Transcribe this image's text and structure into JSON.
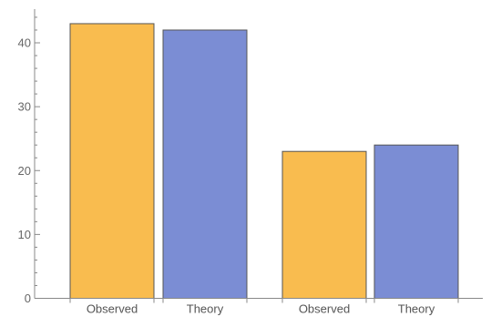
{
  "chart_data": {
    "type": "bar",
    "title": "",
    "xlabel": "",
    "ylabel": "",
    "ylim": [
      0,
      45
    ],
    "yticks": [
      0,
      10,
      20,
      30,
      40
    ],
    "yminor_step": 2,
    "grid": false,
    "groups": [
      {
        "bars": [
          {
            "category": "Observed",
            "value": 43,
            "color": "#f9bc4f"
          },
          {
            "category": "Theory",
            "value": 42,
            "color": "#7b8dd4"
          }
        ]
      },
      {
        "bars": [
          {
            "category": "Observed",
            "value": 23,
            "color": "#f9bc4f"
          },
          {
            "category": "Theory",
            "value": 24,
            "color": "#7b8dd4"
          }
        ]
      }
    ]
  }
}
